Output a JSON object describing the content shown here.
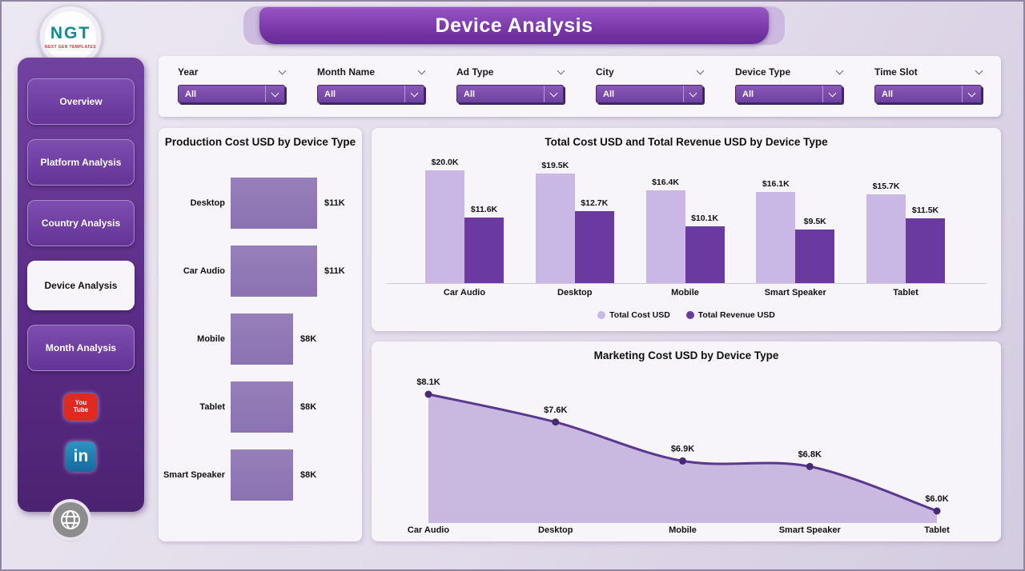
{
  "header": {
    "title": "Device Analysis"
  },
  "logo": {
    "text": "NGT",
    "subtext": "NEXT GEN TEMPLATES"
  },
  "sidebar": {
    "items": [
      {
        "label": "Overview",
        "active": false
      },
      {
        "label": "Platform Analysis",
        "active": false
      },
      {
        "label": "Country Analysis",
        "active": false
      },
      {
        "label": "Device Analysis",
        "active": true
      },
      {
        "label": "Month Analysis",
        "active": false
      }
    ],
    "social": [
      {
        "icon": "youtube-icon",
        "lines": [
          "You",
          "Tube"
        ]
      },
      {
        "icon": "linkedin-icon",
        "label": "in"
      },
      {
        "icon": "globe-icon"
      }
    ]
  },
  "filters": [
    {
      "label": "Year",
      "value": "All"
    },
    {
      "label": "Month Name",
      "value": "All"
    },
    {
      "label": "Ad Type",
      "value": "All"
    },
    {
      "label": "City",
      "value": "All"
    },
    {
      "label": "Device Type",
      "value": "All"
    },
    {
      "label": "Time Slot",
      "value": "All"
    }
  ],
  "chart_data": [
    {
      "type": "bar",
      "orientation": "horizontal",
      "title": "Production Cost USD by Device Type",
      "categories": [
        "Desktop",
        "Car Audio",
        "Mobile",
        "Tablet",
        "Smart Speaker"
      ],
      "values": [
        11,
        11,
        8,
        8,
        8
      ],
      "labels": [
        "$11K",
        "$11K",
        "$8K",
        "$8K",
        "$8K"
      ],
      "unit": "K USD",
      "bar_color": "#8b72b2"
    },
    {
      "type": "bar",
      "orientation": "vertical",
      "title": "Total Cost USD and Total Revenue USD by Device Type",
      "categories": [
        "Car Audio",
        "Desktop",
        "Mobile",
        "Smart Speaker",
        "Tablet"
      ],
      "series": [
        {
          "name": "Total Cost USD",
          "color": "#c9b8e6",
          "values": [
            20.0,
            19.5,
            16.4,
            16.1,
            15.7
          ],
          "labels": [
            "$20.0K",
            "$19.5K",
            "$16.4K",
            "$16.1K",
            "$15.7K"
          ]
        },
        {
          "name": "Total Revenue USD",
          "color": "#6b3aa0",
          "values": [
            11.6,
            12.7,
            10.1,
            9.5,
            11.5
          ],
          "labels": [
            "$11.6K",
            "$12.7K",
            "$10.1K",
            "$9.5K",
            "$11.5K"
          ]
        }
      ],
      "legend_position": "bottom",
      "unit": "K USD"
    },
    {
      "type": "area",
      "title": "Marketing Cost USD by Device Type",
      "categories": [
        "Car Audio",
        "Desktop",
        "Mobile",
        "Smart Speaker",
        "Tablet"
      ],
      "values": [
        8.1,
        7.6,
        6.9,
        6.8,
        6.0
      ],
      "labels": [
        "$8.1K",
        "$7.6K",
        "$6.9K",
        "$6.8K",
        "$6.0K"
      ],
      "unit": "K USD",
      "fill_color": "#c3b2dd",
      "line_color": "#5a3890",
      "point_color": "#472a72"
    }
  ],
  "colors": {
    "accent_dark": "#6b3aa0",
    "accent_light": "#c9b8e6",
    "banner": "#7c3aab",
    "sidebar": "#5a2b84"
  },
  "icons": [
    "chevron-down-icon",
    "youtube-icon",
    "linkedin-icon",
    "globe-icon"
  ]
}
